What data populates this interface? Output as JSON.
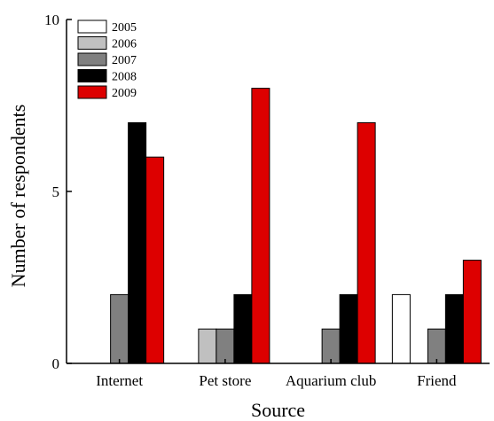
{
  "chart_data": {
    "type": "bar",
    "categories": [
      "Internet",
      "Pet store",
      "Aquarium club",
      "Friend"
    ],
    "series": [
      {
        "name": "2005",
        "values": [
          0,
          0,
          0,
          2
        ],
        "color": "#ffffff"
      },
      {
        "name": "2006",
        "values": [
          0,
          1,
          0,
          0
        ],
        "color": "#c0c0c0"
      },
      {
        "name": "2007",
        "values": [
          2,
          1,
          1,
          1
        ],
        "color": "#808080"
      },
      {
        "name": "2008",
        "values": [
          7,
          2,
          2,
          2
        ],
        "color": "#000000"
      },
      {
        "name": "2009",
        "values": [
          6,
          8,
          7,
          3
        ],
        "color": "#dd0000"
      }
    ],
    "xlabel": "Source",
    "ylabel": "Number of respondents",
    "ylim": [
      0,
      10
    ],
    "yticks": [
      "0",
      "5",
      "10"
    ],
    "ytick_values": [
      0,
      5,
      10
    ],
    "legend_position": "top-left",
    "grid": false
  }
}
